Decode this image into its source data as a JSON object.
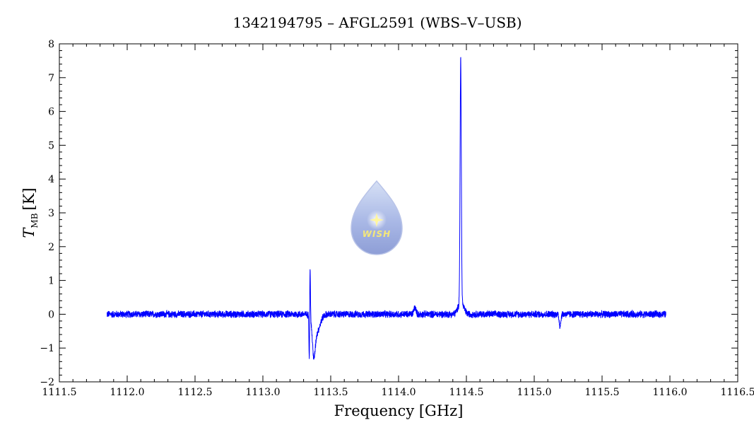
{
  "chart_data": {
    "type": "line",
    "title": "1342194795 – AFGL2591 (WBS–V–USB)",
    "xlabel": "Frequency [GHz]",
    "ylabel_main": "T",
    "ylabel_sub": "MB",
    "ylabel_unit": "[K]",
    "xlim": [
      1111.5,
      1116.5
    ],
    "ylim": [
      -2,
      8
    ],
    "x_ticks": [
      "1111.5",
      "1112.0",
      "1112.5",
      "1113.0",
      "1113.5",
      "1114.0",
      "1114.5",
      "1115.0",
      "1115.5",
      "1116.0",
      "1116.5"
    ],
    "y_ticks": [
      "−2",
      "−1",
      "0",
      "1",
      "2",
      "3",
      "4",
      "5",
      "6",
      "7",
      "8"
    ],
    "grid": false,
    "series_color": "#0000ff",
    "series": [
      {
        "x_range": [
          1111.85,
          1115.97
        ],
        "baseline": 0.0,
        "noise_amplitude": 0.12,
        "features": [
          {
            "center": 1113.345,
            "peak": 1.5
          },
          {
            "center": 1113.34,
            "peak": -1.2
          },
          {
            "center": 1113.38,
            "peak": -0.9
          },
          {
            "center": 1114.12,
            "peak": 0.25
          },
          {
            "center": 1114.455,
            "peak": 7.2
          },
          {
            "center": 1115.19,
            "peak": -0.45
          }
        ]
      }
    ]
  },
  "watermark": {
    "text": "WISH",
    "icon": "wish-water-drop-logo"
  }
}
